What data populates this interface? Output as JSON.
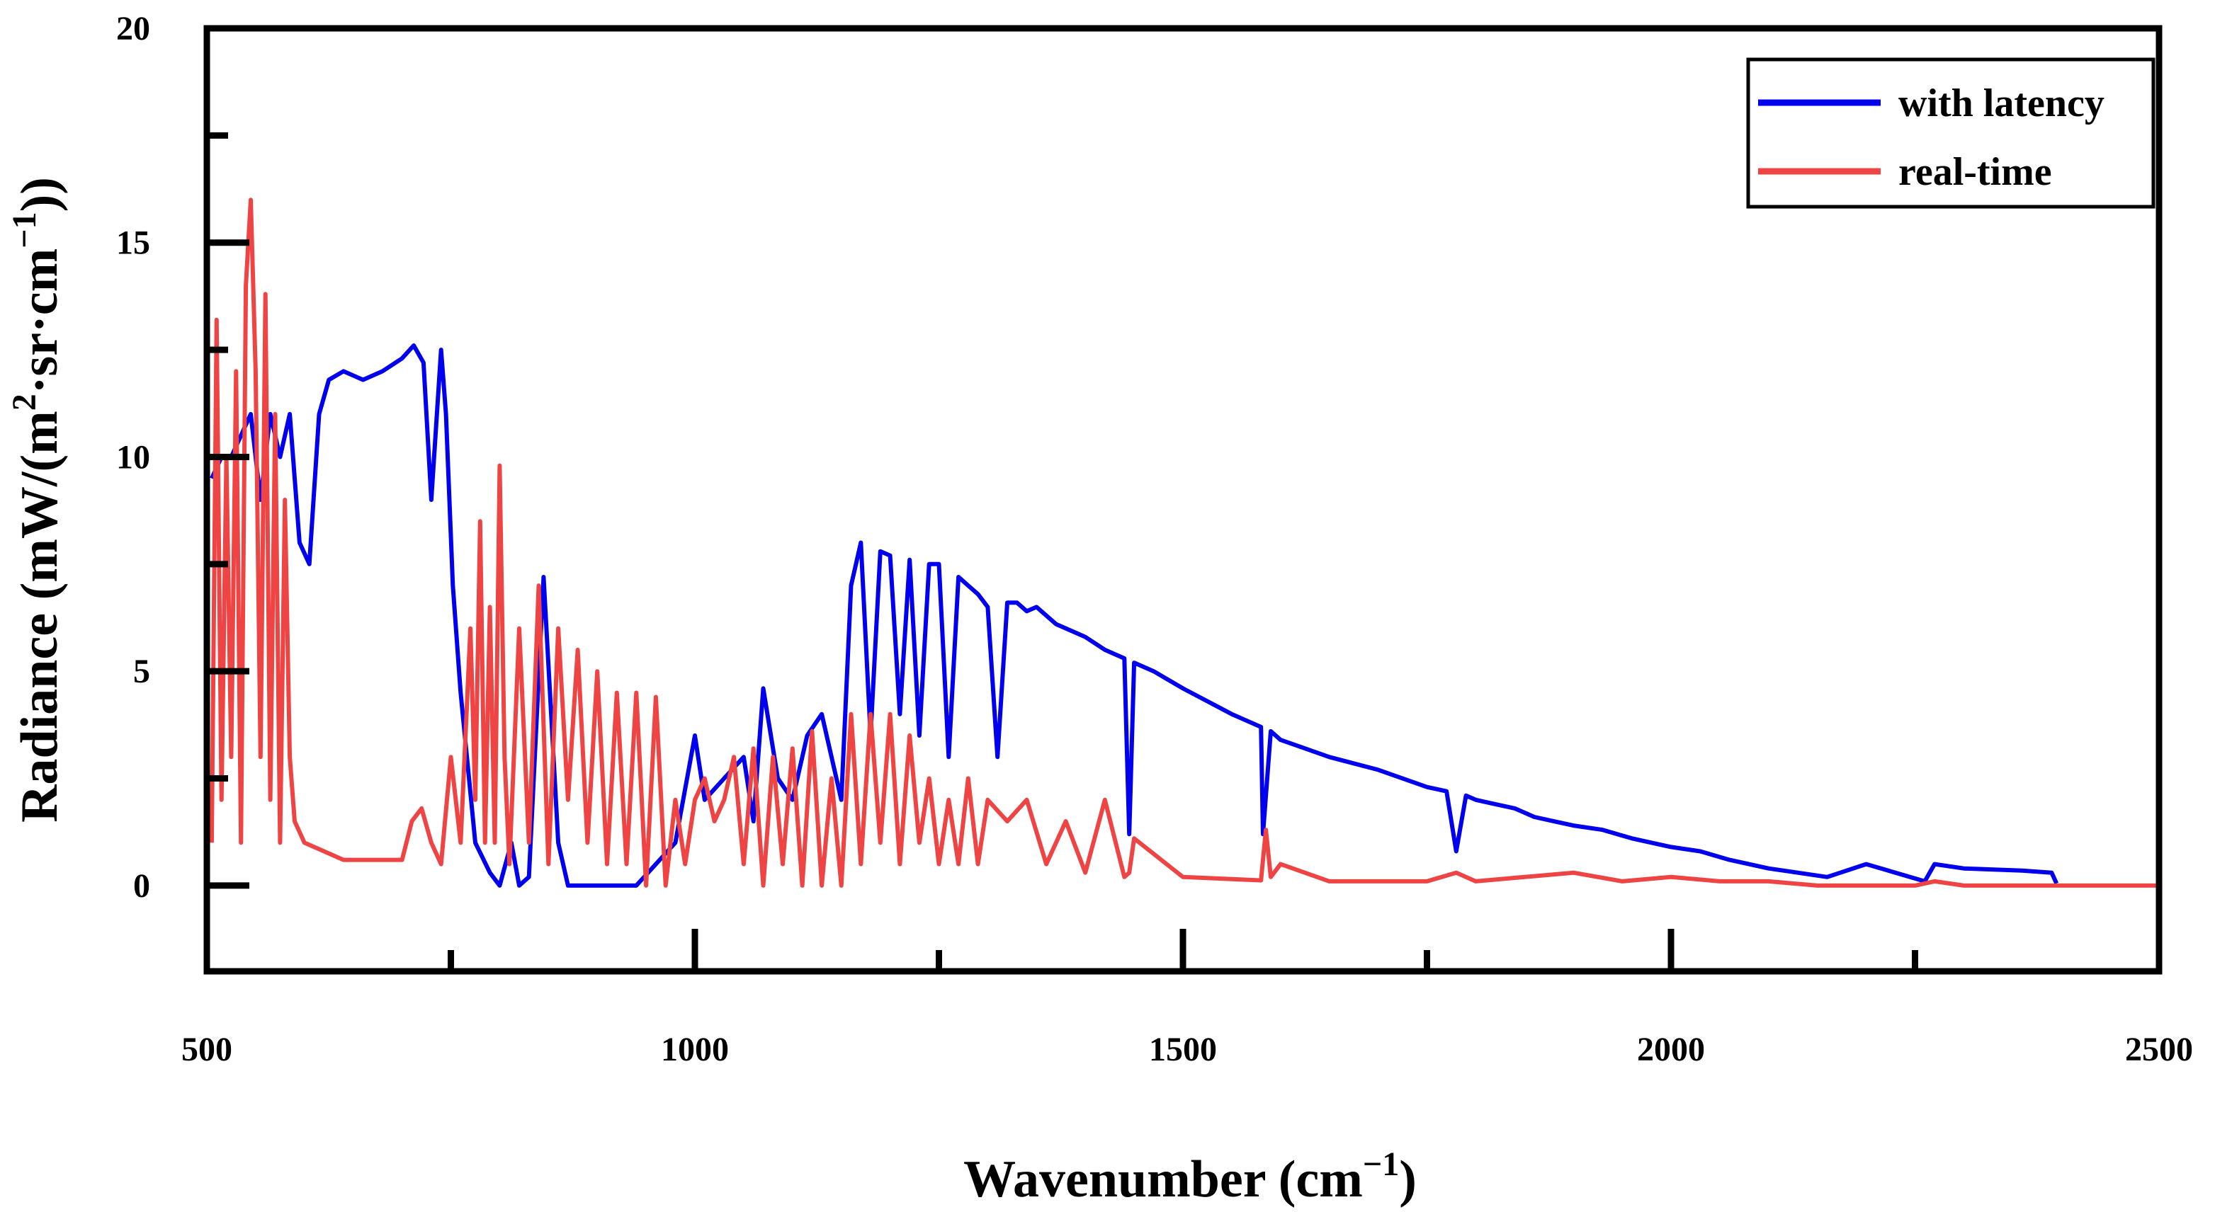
{
  "colors": {
    "with_latency": "#0000ee",
    "real_time": "#ee4444",
    "axis": "#000000"
  },
  "chart_data": {
    "type": "line",
    "title": "",
    "xlabel_main": "Wavenumber (cm",
    "xlabel_sup": "−1",
    "xlabel_close": ")",
    "ylabel_main": "Radiance (mW/(m",
    "ylabel_sup1": "2",
    "ylabel_mid": "·sr·cm",
    "ylabel_sup2": "−1",
    "ylabel_close": "))",
    "xlim": [
      500,
      2500
    ],
    "ylim": [
      -2,
      20
    ],
    "xticks": [
      "500",
      "1000",
      "1500",
      "2000",
      "2500"
    ],
    "yticks": [
      "0",
      "5",
      "10",
      "15",
      "20"
    ],
    "legend": {
      "position": "top-right",
      "entries": [
        "with latency",
        "real-time"
      ]
    },
    "series": [
      {
        "name": "with latency",
        "color": "#0000ee",
        "x": [
          505,
          515,
          525,
          535,
          545,
          555,
          565,
          575,
          585,
          595,
          605,
          615,
          625,
          640,
          660,
          680,
          700,
          712,
          722,
          730,
          740,
          745,
          752,
          760,
          775,
          790,
          800,
          812,
          820,
          830,
          845,
          860,
          870,
          880,
          900,
          920,
          940,
          960,
          980,
          1000,
          1010,
          1030,
          1050,
          1060,
          1070,
          1085,
          1100,
          1115,
          1130,
          1150,
          1160,
          1170,
          1180,
          1190,
          1200,
          1210,
          1220,
          1230,
          1240,
          1250,
          1260,
          1270,
          1280,
          1290,
          1300,
          1310,
          1320,
          1330,
          1340,
          1350,
          1360,
          1370,
          1380,
          1400,
          1420,
          1440,
          1445,
          1450,
          1470,
          1500,
          1550,
          1580,
          1582,
          1590,
          1600,
          1650,
          1700,
          1750,
          1770,
          1780,
          1790,
          1800,
          1820,
          1840,
          1860,
          1880,
          1900,
          1930,
          1960,
          2000,
          2030,
          2060,
          2100,
          2130,
          2160,
          2200,
          2230,
          2260,
          2270,
          2300,
          2360,
          2390,
          2395
        ],
        "y": [
          9.5,
          10,
          10,
          10.5,
          11,
          9,
          11,
          10,
          11,
          8,
          7.5,
          11,
          11.8,
          12,
          11.8,
          12,
          12.3,
          12.6,
          12.2,
          9,
          12.5,
          11,
          7,
          4.5,
          1,
          0.3,
          0,
          1,
          0,
          0.2,
          7.2,
          1,
          0,
          0,
          0,
          0,
          0,
          0.5,
          1,
          3.5,
          2,
          2.5,
          3,
          1.5,
          4.6,
          2.5,
          2,
          3.5,
          4,
          2,
          7,
          8,
          3.5,
          7.8,
          7.7,
          4,
          7.6,
          3.5,
          7.5,
          7.5,
          3,
          7.2,
          7,
          6.8,
          6.5,
          3,
          6.6,
          6.6,
          6.4,
          6.5,
          6.3,
          6.1,
          6,
          5.8,
          5.5,
          5.3,
          1.2,
          5.2,
          5,
          4.6,
          4,
          3.7,
          1.2,
          3.6,
          3.4,
          3,
          2.7,
          2.3,
          2.2,
          0.8,
          2.1,
          2,
          1.9,
          1.8,
          1.6,
          1.5,
          1.4,
          1.3,
          1.1,
          0.9,
          0.8,
          0.6,
          0.4,
          0.3,
          0.2,
          0.5,
          0.3,
          0.1,
          0.5,
          0.4,
          0.35,
          0.3,
          0.05
        ]
      },
      {
        "name": "real-time",
        "color": "#ee4444",
        "x": [
          505,
          510,
          515,
          520,
          525,
          530,
          535,
          540,
          545,
          550,
          555,
          560,
          565,
          570,
          575,
          580,
          585,
          590,
          600,
          620,
          640,
          660,
          680,
          700,
          710,
          720,
          730,
          740,
          750,
          760,
          770,
          775,
          780,
          785,
          790,
          795,
          800,
          805,
          810,
          820,
          830,
          840,
          850,
          860,
          870,
          880,
          890,
          900,
          910,
          920,
          930,
          940,
          950,
          960,
          970,
          980,
          990,
          1000,
          1010,
          1020,
          1030,
          1040,
          1050,
          1060,
          1070,
          1080,
          1090,
          1100,
          1110,
          1120,
          1130,
          1140,
          1150,
          1160,
          1170,
          1180,
          1190,
          1200,
          1210,
          1220,
          1230,
          1240,
          1250,
          1260,
          1270,
          1280,
          1290,
          1300,
          1320,
          1340,
          1360,
          1380,
          1400,
          1420,
          1440,
          1445,
          1450,
          1500,
          1550,
          1580,
          1585,
          1590,
          1600,
          1650,
          1700,
          1750,
          1780,
          1800,
          1850,
          1900,
          1950,
          2000,
          2050,
          2100,
          2150,
          2200,
          2250,
          2270,
          2300,
          2400,
          2500
        ],
        "y": [
          1,
          13.2,
          2,
          10,
          3,
          12,
          1,
          14,
          16,
          12,
          3,
          13.8,
          2,
          11,
          1,
          9,
          3,
          1.5,
          1,
          0.8,
          0.6,
          0.6,
          0.6,
          0.6,
          1.5,
          1.8,
          1,
          0.5,
          3,
          1,
          6,
          2,
          8.5,
          1,
          6.5,
          1,
          9.8,
          3,
          0.5,
          6,
          1,
          7,
          0.5,
          6,
          2,
          5.5,
          1,
          5,
          0.5,
          4.5,
          0.5,
          4.5,
          0,
          4.4,
          0,
          2,
          0.5,
          2,
          2.5,
          1.5,
          2,
          3,
          0.5,
          3.2,
          0,
          3,
          0.5,
          3.2,
          0,
          3.6,
          0,
          2.5,
          0,
          4,
          0.5,
          4,
          1,
          4,
          0.5,
          3.5,
          1,
          2.5,
          0.5,
          2,
          0.5,
          2.5,
          0.5,
          2,
          1.5,
          2,
          0.5,
          1.5,
          0.3,
          2,
          0.2,
          0.3,
          1.1,
          0.2,
          0.15,
          0.12,
          1.3,
          0.2,
          0.5,
          0.1,
          0.1,
          0.1,
          0.3,
          0.1,
          0.2,
          0.3,
          0.1,
          0.2,
          0.1,
          0.1,
          0,
          0,
          0,
          0.1,
          0,
          0,
          0
        ]
      }
    ]
  }
}
